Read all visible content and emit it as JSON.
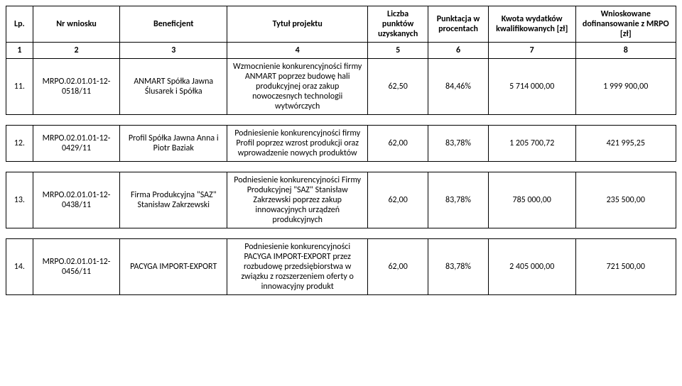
{
  "columns": [
    {
      "key": "lp",
      "label": "Lp."
    },
    {
      "key": "nr",
      "label": "Nr wniosku"
    },
    {
      "key": "ben",
      "label": "Beneficjent"
    },
    {
      "key": "tyt",
      "label": "Tytuł projektu"
    },
    {
      "key": "pkt",
      "label": "Liczba punktów uzyskanych"
    },
    {
      "key": "proc",
      "label": "Punktacja w procentach"
    },
    {
      "key": "kw",
      "label": "Kwota wydatków kwalifikowanych [zł]"
    },
    {
      "key": "dof",
      "label": "Wnioskowane dofinansowanie z MRPO [zł]"
    }
  ],
  "colnums": [
    "1",
    "2",
    "3",
    "4",
    "5",
    "6",
    "7",
    "8"
  ],
  "rows": [
    {
      "lp": "11.",
      "nr": "MRPO.02.01.01-12-0518/11",
      "ben": "ANMART Spółka Jawna Ślusarek i Spółka",
      "tyt": "Wzmocnienie konkurencyjności firmy ANMART poprzez budowę hali produkcyjnej oraz zakup nowoczesnych technologii wytwórczych",
      "pkt": "62,50",
      "proc": "84,46%",
      "kw": "5 714 000,00",
      "dof": "1 999 900,00"
    },
    {
      "lp": "12.",
      "nr": "MRPO.02.01.01-12-0429/11",
      "ben": "Profil Spółka Jawna Anna i Piotr Baziak",
      "tyt": "Podniesienie konkurencyjności firmy Profil poprzez wzrost produkcji oraz wprowadzenie nowych produktów",
      "pkt": "62,00",
      "proc": "83,78%",
      "kw": "1 205 700,72",
      "dof": "421 995,25"
    },
    {
      "lp": "13.",
      "nr": "MRPO.02.01.01-12-0438/11",
      "ben": "Firma Produkcyjna \"SAZ\" Stanisław Zakrzewski",
      "tyt": "Podniesienie konkurencyjności Firmy Produkcyjnej \"SAZ\" Stanisław Zakrzewski poprzez zakup innowacyjnych urządzeń produkcyjnych",
      "pkt": "62,00",
      "proc": "83,78%",
      "kw": "785 000,00",
      "dof": "235 500,00"
    },
    {
      "lp": "14.",
      "nr": "MRPO.02.01.01-12-0456/11",
      "ben": "PACYGA IMPORT-EXPORT",
      "tyt": "Podniesienie konkurencyjności PACYGA IMPORT-EXPORT przez rozbudowę przedsiębiorstwa w związku z rozszerzeniem oferty o innowacyjny produkt",
      "pkt": "62,00",
      "proc": "83,78%",
      "kw": "2 405 000,00",
      "dof": "721 500,00"
    }
  ],
  "style": {
    "font_family": "Calibri, Arial, sans-serif",
    "font_size_pt": 12,
    "border_color": "#000000",
    "background": "#ffffff",
    "text_color": "#000000"
  }
}
